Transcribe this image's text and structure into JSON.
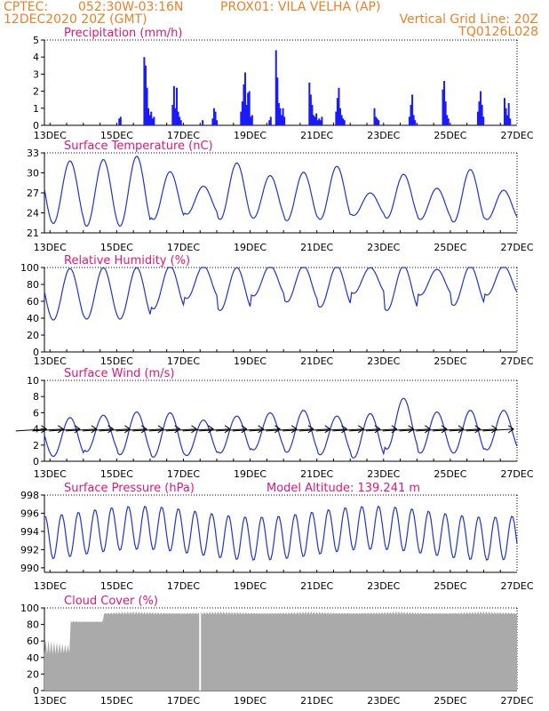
{
  "header": {
    "source": "CPTEC:",
    "coords": "052:30W-03:16N",
    "station": "PROX01: VILA VELHA (AP)",
    "init": "12DEC2020 20Z (GMT)",
    "grid_note": "Vertical Grid Line: 20Z",
    "model": "TQ0126L028"
  },
  "x_tick_labels": [
    "13DEC",
    "15DEC",
    "17DEC",
    "19DEC",
    "21DEC",
    "23DEC",
    "25DEC",
    "27DEC"
  ],
  "chart_data": [
    {
      "type": "bar",
      "title": "Precipitation (mm/h)",
      "x_range": [
        "12DEC2020 20Z",
        "27DEC2020 00Z"
      ],
      "ylim": [
        0,
        5
      ],
      "y_ticks": [
        0,
        1,
        2,
        3,
        4,
        5
      ],
      "color": "#1a1aff",
      "events": [
        {
          "day": 15.05,
          "values": [
            0.4,
            0.5
          ]
        },
        {
          "day": 15.8,
          "values": [
            4.0,
            3.5,
            2.2,
            1.0,
            0.6,
            0.8,
            0.4,
            0.5
          ]
        },
        {
          "day": 16.65,
          "values": [
            1.2,
            2.3,
            1.0,
            2.2,
            0.8,
            0.5,
            0.3
          ]
        },
        {
          "day": 17.55,
          "values": [
            0.3
          ]
        },
        {
          "day": 17.85,
          "values": [
            0.4,
            1.0,
            0.8,
            0.3
          ]
        },
        {
          "day": 18.7,
          "values": [
            0.8,
            1.4,
            2.4,
            3.1,
            1.2,
            1.9,
            2.0,
            0.5,
            0.6
          ]
        },
        {
          "day": 19.55,
          "values": [
            0.3,
            0.5
          ]
        },
        {
          "day": 19.75,
          "values": [
            4.4,
            2.8,
            1.3,
            1.0,
            0.6,
            1.0,
            0.5
          ]
        },
        {
          "day": 20.75,
          "values": [
            2.5,
            1.8,
            1.2,
            0.6,
            0.5,
            0.7,
            0.3,
            0.4,
            0.3,
            0.5
          ]
        },
        {
          "day": 21.55,
          "values": [
            0.8,
            1.6,
            2.2,
            1.0,
            0.6,
            0.4,
            0.3
          ]
        },
        {
          "day": 22.7,
          "values": [
            1.0,
            0.5,
            0.4,
            0.3
          ]
        },
        {
          "day": 23.75,
          "values": [
            0.5,
            1.2,
            1.8,
            0.6,
            0.3
          ]
        },
        {
          "day": 24.75,
          "values": [
            2.1,
            2.6,
            1.4,
            0.6,
            0.4
          ]
        },
        {
          "day": 25.8,
          "values": [
            0.8,
            1.4,
            2.0,
            1.2,
            0.5
          ]
        },
        {
          "day": 26.6,
          "values": [
            1.6,
            1.0,
            0.6,
            1.3,
            0.4
          ]
        }
      ]
    },
    {
      "type": "line",
      "title": "Surface Temperature (nC)",
      "ylim": [
        21,
        33
      ],
      "y_ticks": [
        21,
        24,
        27,
        30,
        33
      ],
      "color": "#2233cc",
      "days": [
        13,
        14,
        15,
        16,
        17,
        18,
        19,
        20,
        21,
        22,
        23,
        24,
        25,
        26
      ],
      "daily_max": [
        31.8,
        32.0,
        32.5,
        30.2,
        28.0,
        31.5,
        29.6,
        30.1,
        31.0,
        27.0,
        29.8,
        27.7,
        30.5,
        27.4
      ],
      "daily_min": [
        22.4,
        22.0,
        22.0,
        23.0,
        23.8,
        23.0,
        23.2,
        22.8,
        23.0,
        23.6,
        23.2,
        23.0,
        22.6,
        23.0
      ]
    },
    {
      "type": "line",
      "title": "Relative Humidity (%)",
      "ylim": [
        0,
        100
      ],
      "y_ticks": [
        0,
        20,
        40,
        60,
        80,
        100
      ],
      "color": "#2233cc",
      "days": [
        13,
        14,
        15,
        16,
        17,
        18,
        19,
        20,
        21,
        22,
        23,
        24,
        25,
        26
      ],
      "daily_max": [
        97,
        98,
        98,
        100,
        100,
        98,
        100,
        100,
        100,
        98,
        100,
        96,
        100,
        100
      ],
      "daily_min": [
        37,
        38,
        38,
        50,
        62,
        48,
        65,
        58,
        52,
        68,
        48,
        66,
        54,
        66
      ]
    },
    {
      "type": "line",
      "title": "Surface Wind (m/s)",
      "ylim": [
        0,
        10
      ],
      "y_ticks": [
        0,
        2,
        4,
        6,
        8,
        10
      ],
      "color": "#2233cc",
      "days": [
        13,
        14,
        15,
        16,
        17,
        18,
        19,
        20,
        21,
        22,
        23,
        24,
        25,
        26
      ],
      "daily_max": [
        5.4,
        5.7,
        6.1,
        6.0,
        5.1,
        5.6,
        6.0,
        6.3,
        5.6,
        5.9,
        7.8,
        6.1,
        6.3,
        6.3
      ],
      "daily_min": [
        0.6,
        1.2,
        0.8,
        0.5,
        0.7,
        1.0,
        1.4,
        1.1,
        0.8,
        0.4,
        1.5,
        1.0,
        1.0,
        1.4
      ],
      "arrow_direction_deg": 75,
      "arrow_days": [
        12.9,
        13.4,
        13.9,
        14.4,
        14.9,
        15.4,
        15.9,
        16.4,
        16.9,
        17.4,
        17.9,
        18.4,
        18.9,
        19.4,
        19.9,
        20.4,
        20.9,
        21.4,
        21.9,
        22.4,
        22.9,
        23.4,
        23.9,
        24.4,
        24.9,
        25.4,
        25.9,
        26.4,
        26.9
      ]
    },
    {
      "type": "line",
      "title": "Surface Pressure (hPa)",
      "annotation": "Model Altitude: 139.241 m",
      "ylim": [
        989.5,
        998
      ],
      "y_ticks": [
        990,
        992,
        994,
        996,
        998
      ],
      "color": "#2233cc",
      "mean": 993.8,
      "amplitude": 2.4
    },
    {
      "type": "area",
      "title": "Cloud Cover (%)",
      "ylim": [
        0,
        100
      ],
      "y_ticks": [
        0,
        20,
        40,
        60,
        80,
        100
      ],
      "color": "#aaaaaa",
      "segments": [
        {
          "from_day": 12.83,
          "to_day": 13.6,
          "level": 62
        },
        {
          "from_day": 13.6,
          "to_day": 14.6,
          "level": 86
        },
        {
          "from_day": 14.6,
          "to_day": 27.0,
          "level": 96
        }
      ],
      "gap_day": 17.5
    }
  ]
}
